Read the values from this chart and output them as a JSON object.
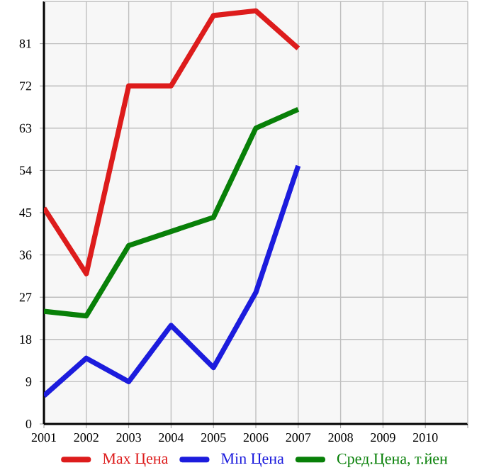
{
  "chart_data": {
    "type": "line",
    "x": [
      2001,
      2002,
      2003,
      2004,
      2005,
      2006,
      2007
    ],
    "series": [
      {
        "name": "Max Цена",
        "color": "#dd1c1c",
        "values": [
          46,
          32,
          72,
          72,
          87,
          88,
          80
        ]
      },
      {
        "name": "Min Цена",
        "color": "#1c1cdd",
        "values": [
          6,
          14,
          9,
          21,
          12,
          28,
          55
        ]
      },
      {
        "name": "Сред.Цена, т.йен",
        "color": "#088008",
        "values": [
          24,
          23,
          38,
          41,
          44,
          63,
          67
        ]
      }
    ],
    "xlim": [
      2001,
      2011
    ],
    "xticks": [
      2001,
      2002,
      2003,
      2004,
      2005,
      2006,
      2007,
      2008,
      2009,
      2010
    ],
    "ylim": [
      0,
      90
    ],
    "yticks": [
      0,
      9,
      18,
      27,
      36,
      45,
      54,
      63,
      72,
      81
    ],
    "grid": true,
    "legend": "bottom",
    "marker": "none",
    "line_style": "solid"
  }
}
